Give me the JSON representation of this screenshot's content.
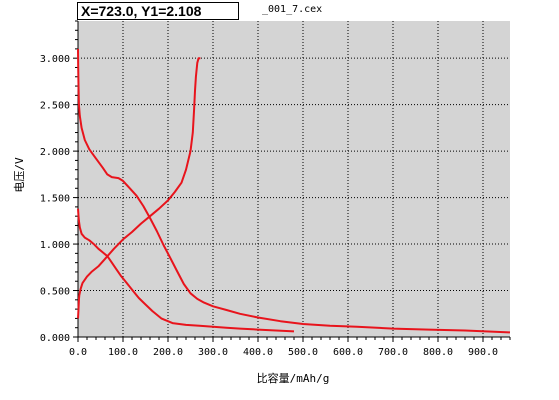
{
  "readout": "X=723.0, Y1=2.108",
  "chart_data": {
    "type": "line",
    "title": "_001_7.cex",
    "xlabel": "比容量/mAh/g",
    "ylabel": "电压/V",
    "xlim": [
      0,
      960
    ],
    "ylim": [
      0,
      3.4
    ],
    "xticks": [
      0,
      100,
      200,
      300,
      400,
      500,
      600,
      700,
      800,
      900
    ],
    "xtick_labels": [
      "0.0",
      "100.0",
      "200.0",
      "300.0",
      "400.0",
      "500.0",
      "600.0",
      "700.0",
      "800.0",
      "900.0"
    ],
    "yticks": [
      0,
      0.5,
      1,
      1.5,
      2,
      2.5,
      3
    ],
    "ytick_labels": [
      "0.000",
      "0.500",
      "1.000",
      "1.500",
      "2.000",
      "2.500",
      "3.000"
    ],
    "grid": true,
    "plot_background": "#d4d4d4",
    "series_color": "#e8141c",
    "series": [
      {
        "x": [
          0,
          1,
          2,
          3,
          6,
          10,
          20,
          30,
          45,
          60,
          80,
          100,
          120,
          140,
          160,
          180,
          200,
          215,
          230,
          240,
          250,
          255,
          258,
          260,
          262,
          265,
          268,
          272
        ],
        "y": [
          0.2,
          0.3,
          0.4,
          0.45,
          0.52,
          0.58,
          0.65,
          0.7,
          0.76,
          0.84,
          0.95,
          1.05,
          1.13,
          1.22,
          1.3,
          1.38,
          1.47,
          1.56,
          1.66,
          1.8,
          2.0,
          2.2,
          2.45,
          2.65,
          2.8,
          2.95,
          3.0,
          3.0
        ]
      },
      {
        "x": [
          0,
          0.5,
          1,
          2,
          4,
          8,
          15,
          25,
          40,
          55,
          65,
          75,
          90,
          100,
          115,
          130,
          145,
          160,
          175,
          190,
          205,
          220,
          235,
          250,
          265,
          280,
          300,
          330,
          360,
          400,
          450,
          500,
          560,
          620,
          700,
          780,
          860,
          960
        ],
        "y": [
          3.1,
          2.9,
          2.7,
          2.5,
          2.38,
          2.25,
          2.12,
          2.02,
          1.92,
          1.82,
          1.75,
          1.72,
          1.71,
          1.68,
          1.6,
          1.52,
          1.41,
          1.28,
          1.14,
          0.99,
          0.85,
          0.71,
          0.57,
          0.47,
          0.41,
          0.37,
          0.33,
          0.29,
          0.25,
          0.21,
          0.17,
          0.14,
          0.12,
          0.11,
          0.09,
          0.08,
          0.07,
          0.05
        ]
      },
      {
        "x": [
          0,
          1,
          2,
          4,
          8,
          15,
          25,
          35,
          45,
          55,
          65,
          75,
          85,
          95,
          105,
          120,
          135,
          150,
          165,
          185,
          210,
          240,
          270,
          300,
          330,
          360,
          400,
          440,
          480
        ],
        "y": [
          1.38,
          1.3,
          1.25,
          1.18,
          1.11,
          1.07,
          1.04,
          1.0,
          0.95,
          0.91,
          0.87,
          0.8,
          0.73,
          0.66,
          0.6,
          0.51,
          0.42,
          0.35,
          0.28,
          0.2,
          0.15,
          0.13,
          0.12,
          0.11,
          0.1,
          0.09,
          0.08,
          0.07,
          0.06
        ]
      }
    ]
  }
}
